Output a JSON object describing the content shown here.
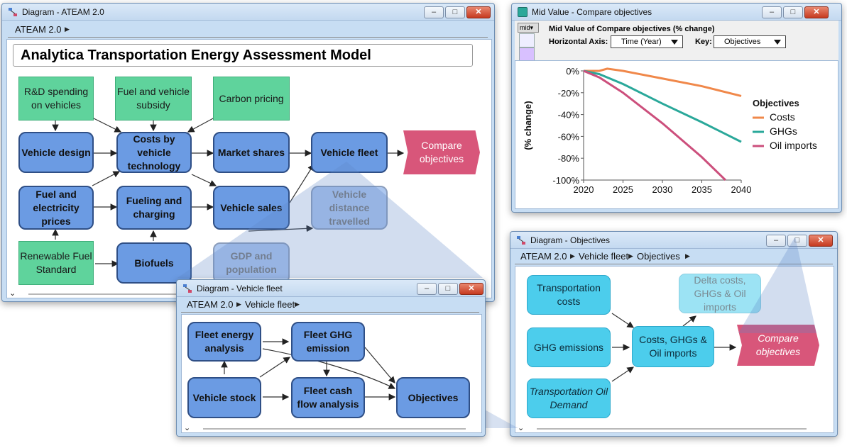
{
  "win_main": {
    "title": "Diagram - ATEAM 2.0",
    "crumb": "ATEAM 2.0",
    "model_title": "Analytica Transportation Energy Assessment Model",
    "nodes": {
      "rd": "R&D spending on vehicles",
      "subsidy": "Fuel and vehicle subsidy",
      "carbon": "Carbon pricing",
      "vdesign": "Vehicle design",
      "costs": "Costs by vehicle technology",
      "market": "Market shares",
      "fleet": "Vehicle fleet",
      "compare": "Compare objectives",
      "fuelprices": "Fuel and electricity prices",
      "fueling": "Fueling and charging",
      "sales": "Vehicle sales",
      "distance": "Vehicle distance travelled",
      "rfs": "Renewable Fuel Standard",
      "biofuels": "Biofuels",
      "gdp": "GDP and population"
    }
  },
  "win_chart": {
    "title": "Mid Value - Compare objectives",
    "heading": "Mid Value of Compare objectives (% change)",
    "mid_button": "mid",
    "haxis_label": "Horizontal Axis:",
    "haxis_value": "Time (Year)",
    "key_label": "Key:",
    "key_value": "Objectives"
  },
  "win_fleet": {
    "title": "Diagram - Vehicle fleet",
    "crumb1": "ATEAM 2.0",
    "crumb2": "Vehicle fleet",
    "nodes": {
      "energy": "Fleet energy analysis",
      "ghg": "Fleet GHG emission",
      "stock": "Vehicle stock",
      "cashflow": "Fleet cash flow analysis",
      "objectives": "Objectives"
    }
  },
  "win_obj": {
    "title": "Diagram - Objectives",
    "crumb1": "ATEAM 2.0",
    "crumb2": "Vehicle fleet",
    "crumb3": "Objectives",
    "nodes": {
      "tcosts": "Transportation costs",
      "ghgem": "GHG emissions",
      "oil": "Transportation Oil Demand",
      "costsghg": "Costs, GHGs & Oil imports",
      "delta": "Delta costs, GHGs & Oil imports",
      "compare": "Compare objectives"
    }
  },
  "colors": {
    "costs": "#f0884a",
    "ghgs": "#2aa89a",
    "oil": "#cc4f7c"
  },
  "chart_data": {
    "type": "line",
    "title": "",
    "xlabel": "",
    "ylabel": "(% change)",
    "xlim": [
      2020,
      2040
    ],
    "ylim": [
      -100,
      0
    ],
    "xticks": [
      "2020",
      "2025",
      "2030",
      "2035",
      "2040"
    ],
    "yticks": [
      "0%",
      "-20%",
      "-40%",
      "-60%",
      "-80%",
      "-100%"
    ],
    "legend_title": "Objectives",
    "legend_position": "right",
    "series": [
      {
        "name": "Costs",
        "x": [
          2020,
          2022,
          2023,
          2025,
          2030,
          2035,
          2040
        ],
        "y": [
          0,
          0,
          2,
          0,
          -7,
          -14,
          -23
        ]
      },
      {
        "name": "GHGs",
        "x": [
          2020,
          2022,
          2025,
          2030,
          2035,
          2040
        ],
        "y": [
          0,
          -3,
          -12,
          -30,
          -47,
          -65
        ]
      },
      {
        "name": "Oil imports",
        "x": [
          2020,
          2022,
          2025,
          2030,
          2035,
          2038
        ],
        "y": [
          0,
          -6,
          -20,
          -48,
          -79,
          -100
        ]
      }
    ]
  }
}
